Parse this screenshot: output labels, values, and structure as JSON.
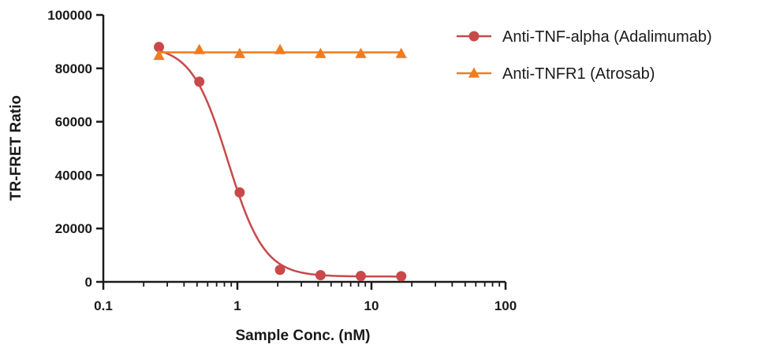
{
  "chart_data": {
    "type": "scatter",
    "title": "",
    "xlabel": "Sample Conc. (nM)",
    "ylabel": "TR-FRET Ratio",
    "x_scale": "log",
    "xlim": [
      0.1,
      100
    ],
    "ylim": [
      0,
      100000
    ],
    "x_ticks": [
      0.1,
      1,
      10,
      100
    ],
    "x_tick_labels": [
      "0.1",
      "1",
      "10",
      "100"
    ],
    "y_ticks": [
      0,
      20000,
      40000,
      60000,
      80000,
      100000
    ],
    "y_tick_labels": [
      "0",
      "20000",
      "40000",
      "60000",
      "80000",
      "100000"
    ],
    "grid": false,
    "legend_position": "top-right outside",
    "series": [
      {
        "name": "Anti-TNF-alpha (Adalimumab)",
        "color": "#c8494a",
        "marker": "circle",
        "fit": {
          "model": "4PL",
          "top": 88500,
          "bottom": 2000,
          "ec50": 0.85,
          "hill": 3.2
        },
        "points": [
          {
            "x": 0.26,
            "y": 88000
          },
          {
            "x": 0.52,
            "y": 75000
          },
          {
            "x": 1.04,
            "y": 33500
          },
          {
            "x": 2.08,
            "y": 4500
          },
          {
            "x": 4.17,
            "y": 2500
          },
          {
            "x": 8.33,
            "y": 2200
          },
          {
            "x": 16.67,
            "y": 2100
          }
        ]
      },
      {
        "name": "Anti-TNFR1 (Atrosab)",
        "color": "#f07c1f",
        "marker": "triangle",
        "fit": {
          "model": "flat",
          "y": 86000
        },
        "points": [
          {
            "x": 0.26,
            "y": 84800
          },
          {
            "x": 0.52,
            "y": 87000
          },
          {
            "x": 1.04,
            "y": 85500
          },
          {
            "x": 2.08,
            "y": 87000
          },
          {
            "x": 4.17,
            "y": 85500
          },
          {
            "x": 8.33,
            "y": 85500
          },
          {
            "x": 16.67,
            "y": 85500
          }
        ]
      }
    ]
  }
}
